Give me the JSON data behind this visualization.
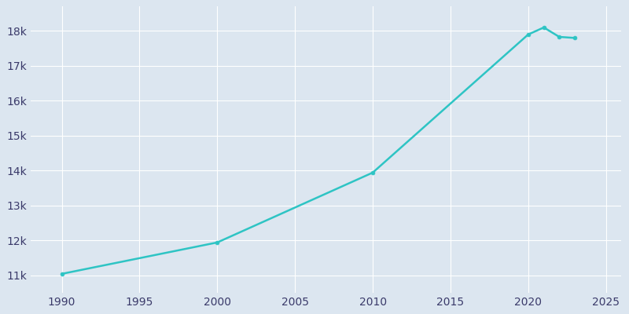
{
  "years": [
    1990,
    2000,
    2010,
    2020,
    2021,
    2022,
    2023
  ],
  "population": [
    11039,
    11939,
    13941,
    17900,
    18100,
    17830,
    17800
  ],
  "line_color": "#2EC4C4",
  "marker": "o",
  "marker_size": 3.5,
  "line_width": 1.8,
  "background_color": "#dce6f0",
  "plot_bg_color": "#dce6f0",
  "grid_color": "#ffffff",
  "xlim": [
    1988,
    2026
  ],
  "ylim": [
    10500,
    18700
  ],
  "xticks": [
    1990,
    1995,
    2000,
    2005,
    2010,
    2015,
    2020,
    2025
  ],
  "yticks": [
    11000,
    12000,
    13000,
    14000,
    15000,
    16000,
    17000,
    18000
  ],
  "ytick_labels": [
    "11k",
    "12k",
    "13k",
    "14k",
    "15k",
    "16k",
    "17k",
    "18k"
  ],
  "tick_color": "#3a3a6a",
  "figsize": [
    8.0,
    4.0
  ],
  "dpi": 100
}
